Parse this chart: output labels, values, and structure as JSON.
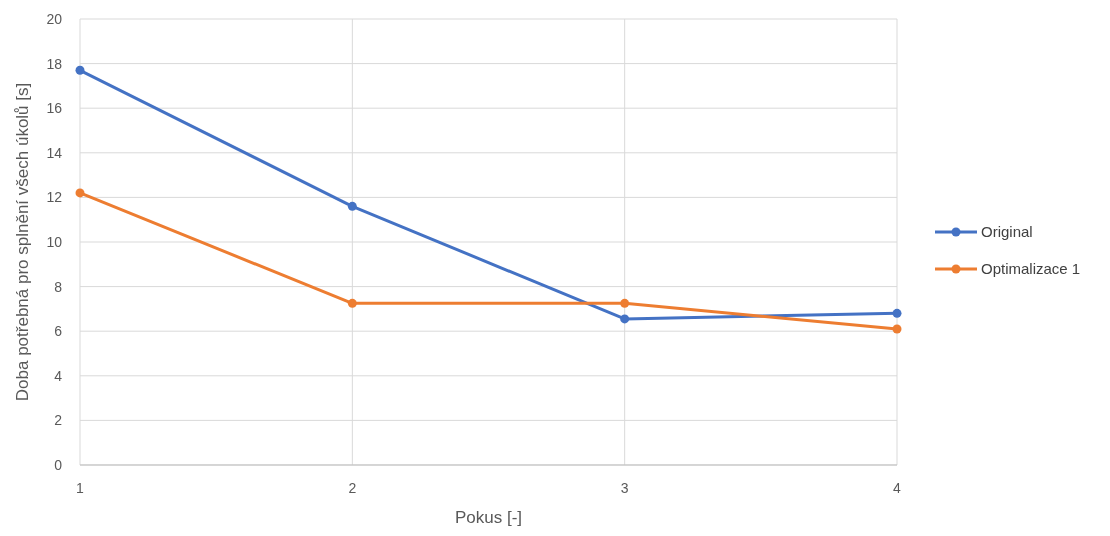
{
  "chart_data": {
    "type": "line",
    "xlabel": "Pokus [-]",
    "ylabel": "Doba potřebná pro splnění všech úkolů [s]",
    "x": [
      1,
      2,
      3,
      4
    ],
    "series": [
      {
        "name": "Original",
        "color": "#4472c4",
        "values": [
          17.7,
          11.6,
          6.55,
          6.8
        ]
      },
      {
        "name": "Optimalizace 1",
        "color": "#ed7d31",
        "values": [
          12.2,
          7.25,
          7.25,
          6.1
        ]
      }
    ],
    "xlim": [
      1,
      4
    ],
    "xticks": [
      1,
      2,
      3,
      4
    ],
    "ylim": [
      0,
      20
    ],
    "yticks": [
      0,
      2,
      4,
      6,
      8,
      10,
      12,
      14,
      16,
      18,
      20
    ],
    "grid": true,
    "legend": "right",
    "marker": "circle",
    "line_style": "solid"
  }
}
